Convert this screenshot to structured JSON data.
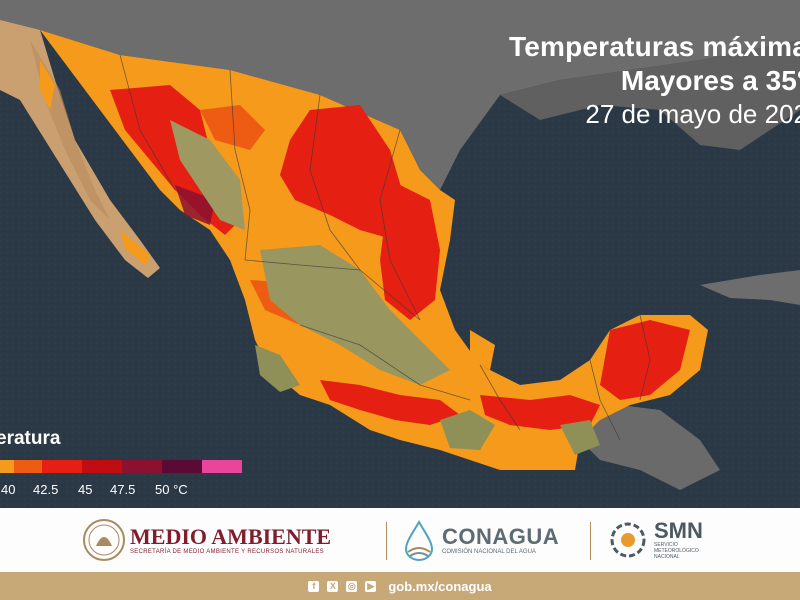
{
  "title": {
    "line1": "Temperaturas máxima",
    "line2": "Mayores a 35°",
    "line3": "27 de mayo de 202"
  },
  "legend": {
    "label": "eratura",
    "colors": [
      "#f59a1a",
      "#ee5b12",
      "#e51f12",
      "#c10d12",
      "#8c1030",
      "#5a0a35",
      "#e8459b"
    ],
    "ticks": [
      "40",
      "42.5",
      "45",
      "47.5",
      "50 °C"
    ]
  },
  "logos": {
    "medio_ambiente": {
      "name": "MEDIO AMBIENTE",
      "subtitle": "SECRETARÍA DE MEDIO AMBIENTE Y RECURSOS NATURALES",
      "color": "#7f1d2d"
    },
    "conagua": {
      "name": "CONAGUA",
      "subtitle": "COMISIÓN NACIONAL DEL AGUA",
      "color": "#5f6b73"
    },
    "smn": {
      "name": "SMN",
      "subtitle1": "SERVICIO",
      "subtitle2": "METEOROLÓGICO",
      "subtitle3": "NACIONAL",
      "color": "#4b5960"
    }
  },
  "footer": {
    "url": "gob.mx/conagua",
    "social_icons": [
      "facebook-icon",
      "x-icon",
      "instagram-icon",
      "youtube-icon"
    ],
    "color": "#c7a877"
  },
  "map": {
    "ocean_color": "#2b3846",
    "land_outside_color": "#6d6d6d",
    "base_temp_color": "#f59a1a",
    "hot_color": "#e51f12",
    "cool_color": "#9f9860"
  }
}
